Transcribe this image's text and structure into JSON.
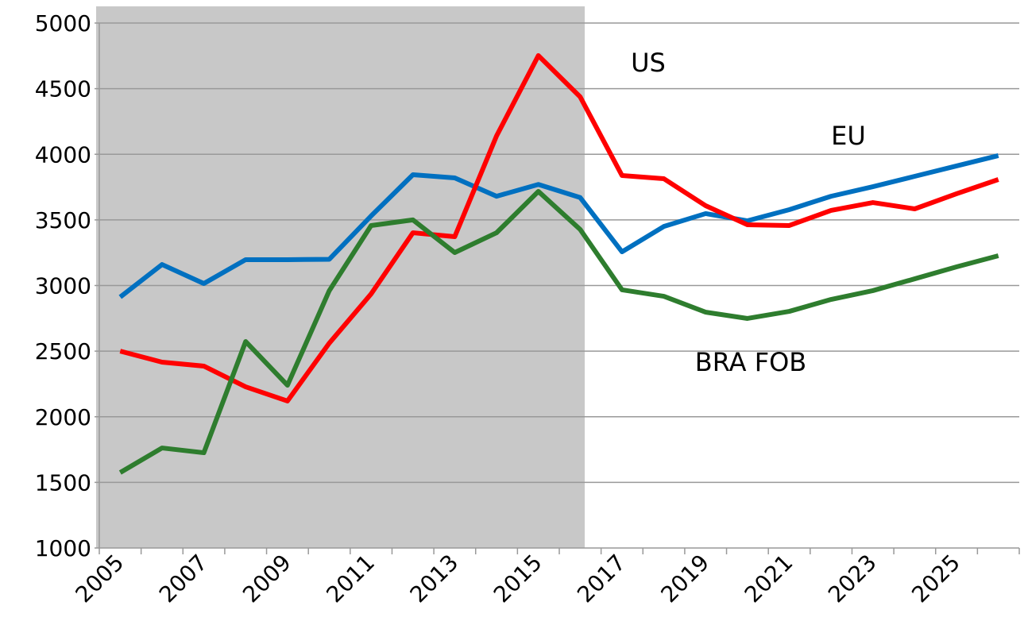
{
  "chart_data": {
    "type": "line",
    "categories": [
      "2005",
      null,
      "2007",
      null,
      "2009",
      null,
      "2011",
      null,
      "2013",
      null,
      "2015",
      null,
      "2017",
      null,
      "2019",
      null,
      "2021",
      null,
      "2023",
      null,
      "2025",
      null
    ],
    "series": [
      {
        "name": "EU",
        "color": "#0070c0",
        "values": [
          2912,
          3160,
          3015,
          3197,
          3197,
          3200,
          3530,
          3844,
          3820,
          3680,
          3770,
          3670,
          3257,
          3450,
          3548,
          3493,
          3578,
          3680,
          3753,
          3832,
          3911,
          3990
        ]
      },
      {
        "name": "US",
        "color": "#ff0000",
        "values": [
          2500,
          2416,
          2386,
          2228,
          2120,
          2561,
          2936,
          3402,
          3372,
          4140,
          4752,
          4437,
          3838,
          3814,
          3608,
          3463,
          3457,
          3572,
          3632,
          3584,
          3699,
          3808
        ]
      },
      {
        "name": "BRA FOB",
        "color": "#2e7d2e",
        "values": [
          1575,
          1762,
          1726,
          2573,
          2240,
          2961,
          3457,
          3500,
          3251,
          3402,
          3717,
          3427,
          2967,
          2918,
          2797,
          2749,
          2803,
          2894,
          2961,
          3051,
          3142,
          3227
        ]
      }
    ],
    "ylim": [
      1000,
      5000
    ],
    "yticks": [
      1000,
      1500,
      2000,
      2500,
      3000,
      3500,
      4000,
      4500,
      5000
    ],
    "grid": true
  }
}
